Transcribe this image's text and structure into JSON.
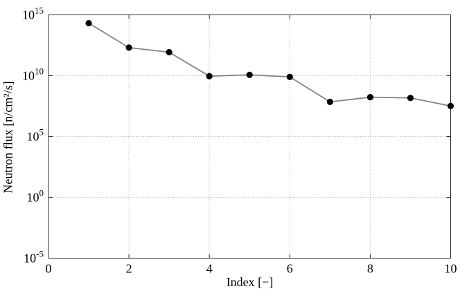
{
  "chart_data": {
    "type": "line",
    "title": "",
    "xlabel": "Index [−]",
    "ylabel": "Neutron flux [n/cm²/s]",
    "x": [
      1,
      2,
      3,
      4,
      5,
      6,
      7,
      8,
      9,
      10
    ],
    "series": [
      {
        "name": "Neutron flux",
        "values": [
          210000000000000.0,
          2000000000000.0,
          850000000000.0,
          9100000000.0,
          12000000000.0,
          7900000000.0,
          71000000.0,
          170000000.0,
          150000000.0,
          32000000.0
        ],
        "log10_values": [
          14.32,
          12.31,
          11.93,
          9.96,
          10.07,
          9.9,
          7.85,
          8.23,
          8.17,
          7.51
        ]
      }
    ],
    "xlim": [
      0,
      10
    ],
    "ylim_log10": [
      -5,
      15
    ],
    "xticks": [
      0,
      2,
      4,
      6,
      8,
      10
    ],
    "ytick_exponents": [
      15,
      10,
      5,
      0,
      -5
    ],
    "yscale": "log",
    "grid": true,
    "legend": "none",
    "style": {
      "line_color": "#848484",
      "line_width": 1.8,
      "marker": "filled-circle",
      "marker_color": "#000000",
      "marker_radius": 4.6,
      "grid_color": "#b5b5b5",
      "grid_style": "dotted",
      "axis_color": "#2e2e2e",
      "background": "#ffffff",
      "tick_label_size": 18,
      "exponent_label_size": 13
    }
  }
}
